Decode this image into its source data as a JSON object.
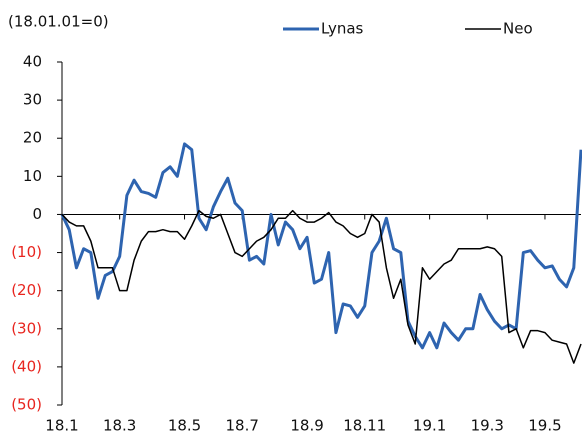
{
  "chart_data": {
    "type": "line",
    "subtitle": "(18.01.01=0)",
    "categories": [
      "18.1",
      null,
      null,
      null,
      null,
      null,
      null,
      null,
      "18.3",
      null,
      null,
      null,
      null,
      null,
      null,
      null,
      null,
      "18.5",
      null,
      null,
      null,
      null,
      null,
      null,
      null,
      "18.7",
      null,
      null,
      null,
      null,
      null,
      null,
      null,
      null,
      "18.9",
      null,
      null,
      null,
      null,
      null,
      null,
      null,
      "18.11",
      null,
      null,
      null,
      null,
      null,
      null,
      null,
      null,
      "19.1",
      null,
      null,
      null,
      null,
      null,
      null,
      null,
      "19.3",
      null,
      null,
      null,
      null,
      null,
      null,
      null,
      "19.5",
      null,
      null,
      null,
      null,
      null
    ],
    "series": [
      {
        "name": "Lynas",
        "color": "#2e64b0",
        "width": 3,
        "values": [
          0,
          -4,
          -14,
          -9,
          -10,
          -22,
          -16,
          -15,
          -11,
          5,
          9,
          6,
          5.5,
          4.5,
          11,
          12.5,
          10,
          18.5,
          17,
          -1,
          -4,
          2,
          6,
          9.5,
          3,
          1,
          -12,
          -11,
          -13,
          0,
          -8,
          -2,
          -4,
          -9,
          -6,
          -18,
          -17,
          -10,
          -31,
          -23.5,
          -24,
          -27,
          -24,
          -10,
          -7,
          -1,
          -9,
          -10,
          -28,
          -32,
          -35,
          -31,
          -35,
          -28.5,
          -31,
          -33,
          -30,
          -30,
          -21,
          -25,
          -28,
          -30,
          -29,
          -30,
          -10,
          -9.5,
          -12,
          -14,
          -13.5,
          -17,
          -19,
          -14,
          17
        ]
      },
      {
        "name": "Neo",
        "color": "#000000",
        "width": 1.5,
        "values": [
          0,
          -2,
          -3,
          -3,
          -7,
          -14,
          -14,
          -14,
          -20,
          -20,
          -12,
          -7,
          -4.5,
          -4.5,
          -4,
          -4.5,
          -4.5,
          -6.5,
          -3,
          1,
          -0.5,
          -1,
          0,
          -5,
          -10,
          -11,
          -9,
          -7,
          -6,
          -4,
          -1,
          -1,
          1,
          -1,
          -2,
          -2,
          -1,
          0.5,
          -2,
          -3,
          -5,
          -6,
          -5,
          0,
          -2,
          -14,
          -22,
          -17,
          -29,
          -34,
          -14,
          -17,
          -15,
          -13,
          -12,
          -9,
          -9,
          -9,
          -9,
          -8.5,
          -9,
          -11,
          -31,
          -30,
          -35,
          -30.5,
          -30.5,
          -31,
          -33,
          -33.5,
          -34,
          -39,
          -34
        ]
      }
    ],
    "ylim": [
      -50,
      40
    ],
    "yticks": [
      {
        "value": -50,
        "label": "(50)"
      },
      {
        "value": -40,
        "label": "(40)"
      },
      {
        "value": -30,
        "label": "(30)"
      },
      {
        "value": -20,
        "label": "(20)"
      },
      {
        "value": -10,
        "label": "(10)"
      },
      0,
      10,
      20,
      30,
      40
    ],
    "negative_tick_color": "#e8251f",
    "legend": "top"
  }
}
